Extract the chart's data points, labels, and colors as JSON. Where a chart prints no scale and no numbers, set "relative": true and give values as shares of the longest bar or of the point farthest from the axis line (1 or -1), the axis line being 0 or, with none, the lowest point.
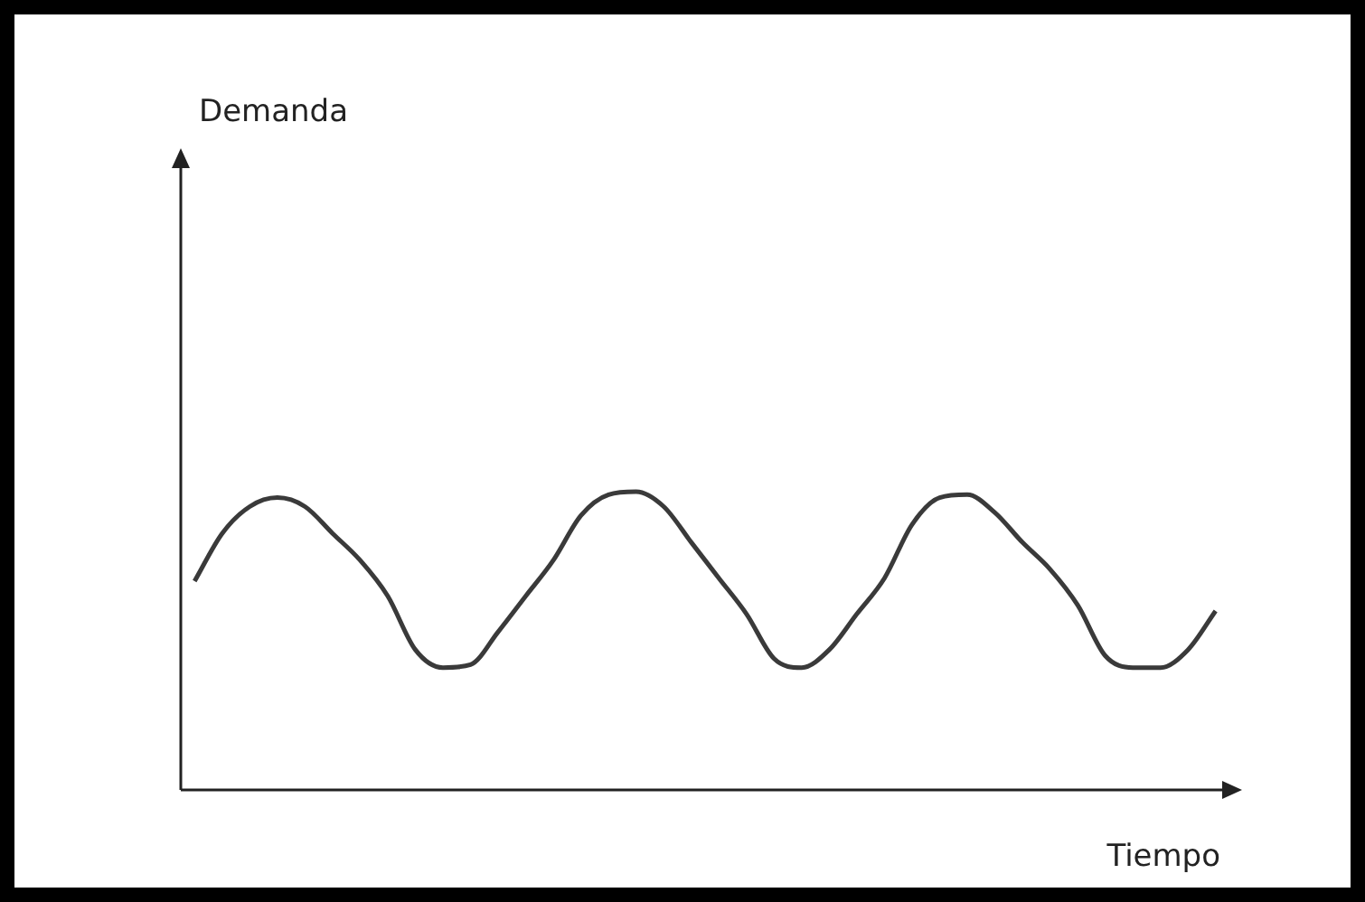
{
  "chart_data": {
    "type": "line",
    "relative": true,
    "xlabel": "Tiempo",
    "annotations": [
      "Demanda"
    ],
    "color": "#3a3a3a",
    "marker": "none",
    "line_style": "solid",
    "grid": false,
    "legend": false,
    "categories": [
      null,
      null,
      null,
      null,
      null,
      null,
      null,
      null,
      null,
      null,
      null,
      null,
      null,
      null,
      null,
      null,
      null,
      null,
      null,
      null,
      null,
      null,
      null,
      null,
      null,
      null,
      null,
      null,
      null,
      null,
      null,
      null,
      null,
      null,
      null,
      null,
      null,
      null
    ],
    "values": [
      0.7,
      0.86,
      0.95,
      0.98,
      0.95,
      0.86,
      0.77,
      0.65,
      0.47,
      0.41,
      0.42,
      0.53,
      0.65,
      0.77,
      0.92,
      0.99,
      1,
      0.95,
      0.83,
      0.71,
      0.59,
      0.44,
      0.41,
      0.47,
      0.59,
      0.71,
      0.89,
      0.98,
      0.99,
      0.93,
      0.83,
      0.74,
      0.62,
      0.45,
      0.41,
      0.41,
      0.47,
      0.6
    ]
  }
}
